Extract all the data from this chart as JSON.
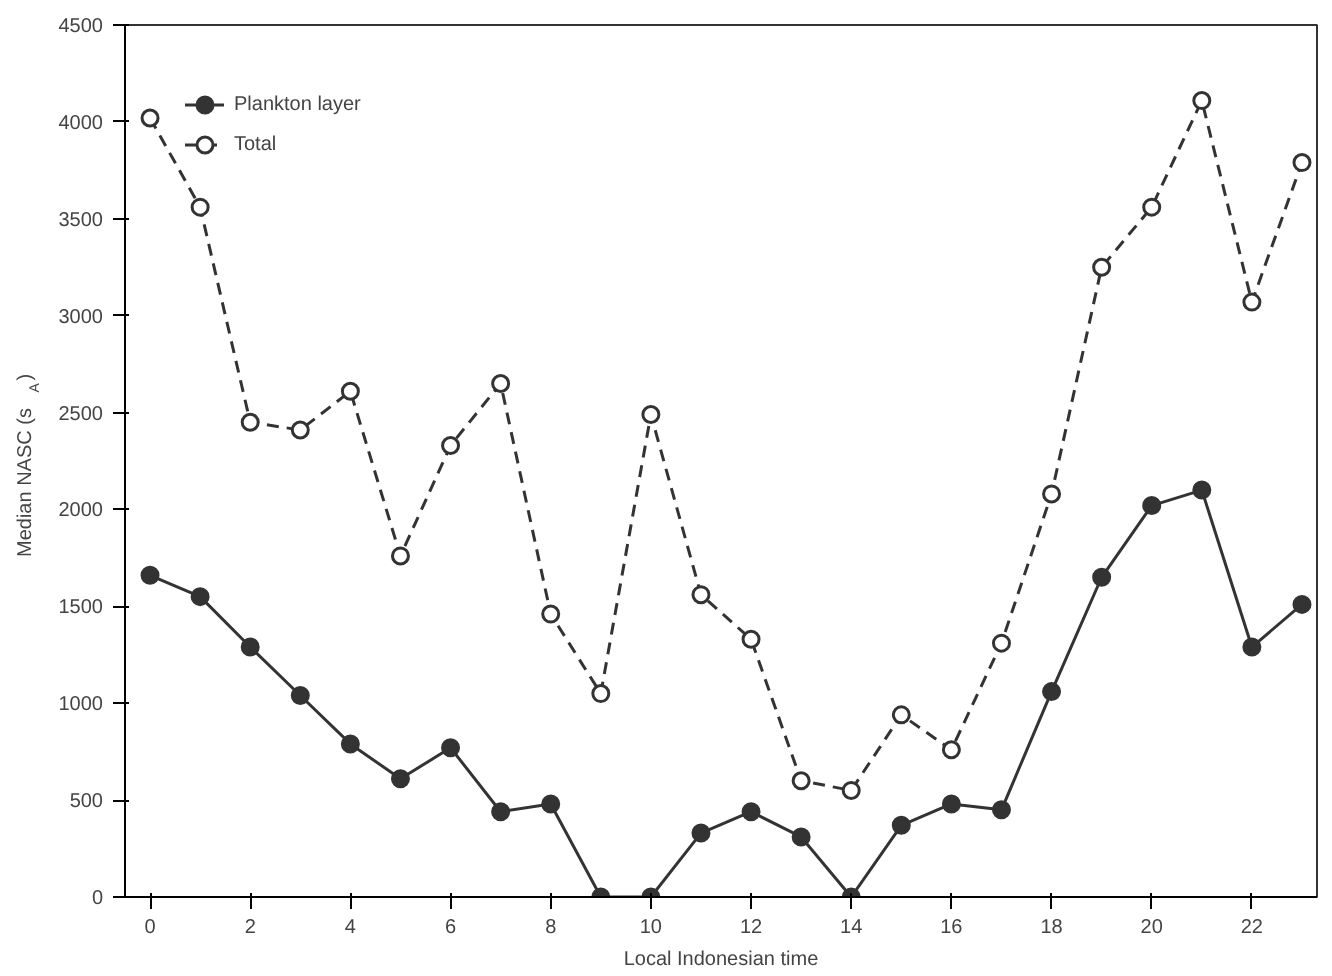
{
  "chart_data": {
    "type": "line",
    "xlabel": "Local Indonesian time",
    "ylabel": "Median NASC (s$_{A}$)",
    "x": [
      0,
      1,
      2,
      3,
      4,
      5,
      6,
      7,
      8,
      9,
      10,
      11,
      12,
      13,
      14,
      15,
      16,
      17,
      18,
      19,
      20,
      21,
      22,
      23
    ],
    "series": [
      {
        "name": "Plankton layer",
        "color": "#333333",
        "marker": "circle",
        "line_style": "solid",
        "values": [
          1660,
          1550,
          1290,
          1040,
          790,
          610,
          770,
          440,
          480,
          0,
          0,
          330,
          440,
          310,
          0,
          370,
          480,
          450,
          1060,
          1650,
          2020,
          2100,
          1290,
          1510
        ]
      },
      {
        "name": "Total",
        "color": "#333333",
        "marker": "circle",
        "line_style": "dashed",
        "values": [
          4020,
          3560,
          2450,
          2410,
          2610,
          1760,
          2330,
          2650,
          1460,
          1050,
          2490,
          1560,
          1330,
          600,
          550,
          940,
          760,
          1310,
          2080,
          3250,
          3560,
          4110,
          3070,
          3790
        ]
      }
    ],
    "xlim": [
      -0.5,
      23.3
    ],
    "ylim": [
      0,
      4500
    ],
    "xticks": [
      0,
      2,
      4,
      6,
      8,
      10,
      12,
      14,
      16,
      18,
      20,
      22
    ],
    "yticks": [
      0,
      500,
      1000,
      1500,
      2000,
      2500,
      3000,
      3500,
      4000,
      4500
    ],
    "grid": false,
    "legend": "top left"
  }
}
